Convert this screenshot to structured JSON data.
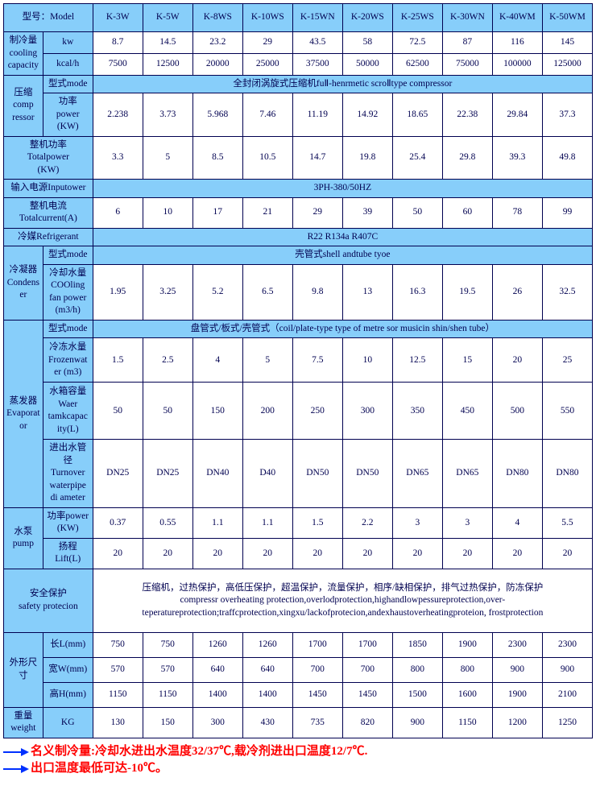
{
  "models": [
    "K-3W",
    "K-5W",
    "K-8WS",
    "K-10WS",
    "K-15WN",
    "K-20WS",
    "K-25WS",
    "K-30WN",
    "K-40WM",
    "K-50WM"
  ],
  "labels": {
    "model": "型号：Model",
    "cooling": "制冷量\ncooling\ncapacity",
    "kw": "kw",
    "kcal": "kcal/h",
    "comp": "压缩\ncomp\nressor",
    "mode": "型式mode",
    "compMode": "全封闭涡旋式压缩机fuⅡ-henrmetic scroⅡtype compressor",
    "power": "功率\npower\n(KW)",
    "totalPower": "整机功率\nTotalpower\n(KW)",
    "inputPower": "输入电源Inputower",
    "inputPowerVal": "3PH-380/50HZ",
    "totalCurrent": "整机电流\nTotalcurrent(A)",
    "refrig": "冷媒Refrigerant",
    "refrigVal": "R22 R134a R407C",
    "condenser": "冷凝器\nCondenser",
    "shellMode": "壳管式shell andtube tyoe",
    "coolFan": "冷却水量\nCOOling\nfan power\n(m3/h)",
    "evap": "蒸发器\nEvaporator",
    "evapMode": "盘管式/板式/壳管式（coil/plate-type type of metre sor musicin shin/shen tube）",
    "frozen": "冷冻水量\nFrozenwat\ner (m3)",
    "tank": "水箱容量\nWaer\ntamkcapac\nity(L)",
    "pipe": "进出水管径\nTurnover\nwaterpipe\ndi ameter",
    "pump": "水泵\npump",
    "pumpPower": "功率power\n(KW)",
    "lift": "扬程\nLift(L)",
    "safety": "安全保护\nsafety protecion",
    "safetyVal": "压缩机，过热保护，高低压保护，超温保护，流量保护，相序/缺相保护，排气过热保护，防冻保护\ncompressr overheating protection,overlodprotection,highandlowpessureprotection,over-teperatureprotection;traffcprotection,xingxu/lackofprotecion,andexhaustoverheatingproteion,     frostprotection",
    "dim": "外形尺寸",
    "len": "长L(mm)",
    "wid": "宽W(mm)",
    "hei": "高H(mm)",
    "weight": "重量\nweight",
    "kg": "KG"
  },
  "rows": {
    "kw": [
      "8.7",
      "14.5",
      "23.2",
      "29",
      "43.5",
      "58",
      "72.5",
      "87",
      "116",
      "145"
    ],
    "kcal": [
      "7500",
      "12500",
      "20000",
      "25000",
      "37500",
      "50000",
      "62500",
      "75000",
      "100000",
      "125000"
    ],
    "compPow": [
      "2.238",
      "3.73",
      "5.968",
      "7.46",
      "11.19",
      "14.92",
      "18.65",
      "22.38",
      "29.84",
      "37.3"
    ],
    "totalPow": [
      "3.3",
      "5",
      "8.5",
      "10.5",
      "14.7",
      "19.8",
      "25.4",
      "29.8",
      "39.3",
      "49.8"
    ],
    "current": [
      "6",
      "10",
      "17",
      "21",
      "29",
      "39",
      "50",
      "60",
      "78",
      "99"
    ],
    "coolFan": [
      "1.95",
      "3.25",
      "5.2",
      "6.5",
      "9.8",
      "13",
      "16.3",
      "19.5",
      "26",
      "32.5"
    ],
    "frozen": [
      "1.5",
      "2.5",
      "4",
      "5",
      "7.5",
      "10",
      "12.5",
      "15",
      "20",
      "25"
    ],
    "tank": [
      "50",
      "50",
      "150",
      "200",
      "250",
      "300",
      "350",
      "450",
      "500",
      "550"
    ],
    "pipe": [
      "DN25",
      "DN25",
      "DN40",
      "D40",
      "DN50",
      "DN50",
      "DN65",
      "DN65",
      "DN80",
      "DN80"
    ],
    "pumpPow": [
      "0.37",
      "0.55",
      "1.1",
      "1.1",
      "1.5",
      "2.2",
      "3",
      "3",
      "4",
      "5.5"
    ],
    "lift": [
      "20",
      "20",
      "20",
      "20",
      "20",
      "20",
      "20",
      "20",
      "20",
      "20"
    ],
    "len": [
      "750",
      "750",
      "1260",
      "1260",
      "1700",
      "1700",
      "1850",
      "1900",
      "2300",
      "2300"
    ],
    "wid": [
      "570",
      "570",
      "640",
      "640",
      "700",
      "700",
      "800",
      "800",
      "900",
      "900"
    ],
    "hei": [
      "1150",
      "1150",
      "1400",
      "1400",
      "1450",
      "1450",
      "1500",
      "1600",
      "1900",
      "2100"
    ],
    "kg": [
      "130",
      "150",
      "300",
      "430",
      "735",
      "820",
      "900",
      "1150",
      "1200",
      "1250"
    ]
  },
  "notes": {
    "n1": "名义制冷量:冷却水进出水温度32/37℃,载冷剂进出口温度12/7℃.",
    "n2": "出口温度最低可达-10℃。"
  }
}
